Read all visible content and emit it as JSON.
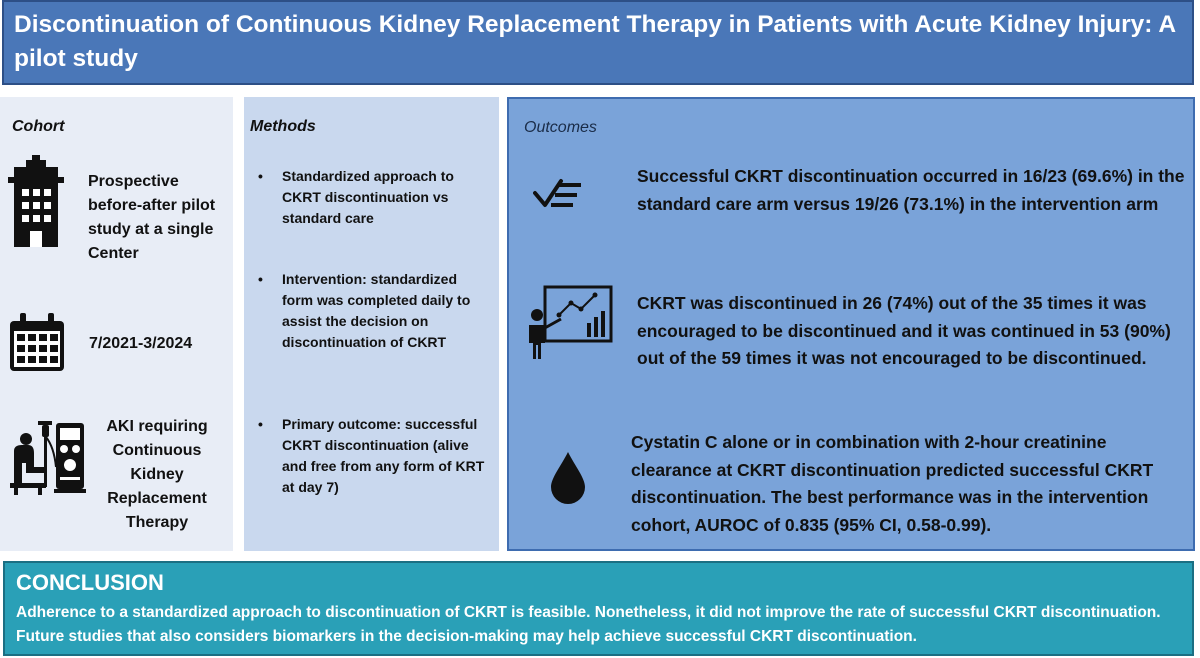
{
  "title": "Discontinuation of Continuous Kidney Replacement Therapy in Patients with Acute Kidney Injury: A pilot study",
  "cohort": {
    "heading": "Cohort",
    "items": [
      {
        "icon": "building-icon",
        "text": "Prospective before-after pilot study at a single Center"
      },
      {
        "icon": "calendar-icon",
        "text": "7/2021-3/2024"
      },
      {
        "icon": "dialysis-patient-icon",
        "text": "AKI requiring Continuous Kidney Replacement Therapy"
      }
    ]
  },
  "methods": {
    "heading": "Methods",
    "bullets": [
      "Standardized approach to CKRT discontinuation vs standard care",
      "Intervention: standardized form was completed daily to assist the decision on discontinuation of CKRT",
      "Primary outcome: successful CKRT discontinuation (alive and free from any form of KRT at day 7)"
    ]
  },
  "outcomes": {
    "heading": "Outcomes",
    "items": [
      {
        "icon": "checklist-icon",
        "text": "Successful CKRT discontinuation occurred in 16/23 (69.6%) in the standard care arm versus 19/26 (73.1%) in the intervention arm"
      },
      {
        "icon": "presentation-chart-icon",
        "text": "CKRT was discontinued in 26 (74%) out of the 35 times it was encouraged to be discontinued and it was continued in 53 (90%) out of the 59 times it was not encouraged to be discontinued."
      },
      {
        "icon": "drop-icon",
        "text": "Cystatin C alone or in combination with 2-hour creatinine clearance at CKRT discontinuation predicted successful CKRT discontinuation. The best performance was in the intervention cohort, AUROC of 0.835 (95% CI, 0.58-0.99)."
      }
    ]
  },
  "conclusion": {
    "heading": "CONCLUSION",
    "text": "Adherence to a standardized approach to discontinuation of CKRT is feasible. Nonetheless, it did not improve the rate of successful CKRT discontinuation. Future studies that also considers biomarkers in the decision-making may help achieve successful CKRT discontinuation."
  },
  "colors": {
    "title_bg": "#4a77b8",
    "cohort_bg": "#e8edf6",
    "methods_bg": "#c9d8ee",
    "outcomes_bg": "#7aa3d9",
    "conclusion_bg": "#2aa0b7"
  }
}
